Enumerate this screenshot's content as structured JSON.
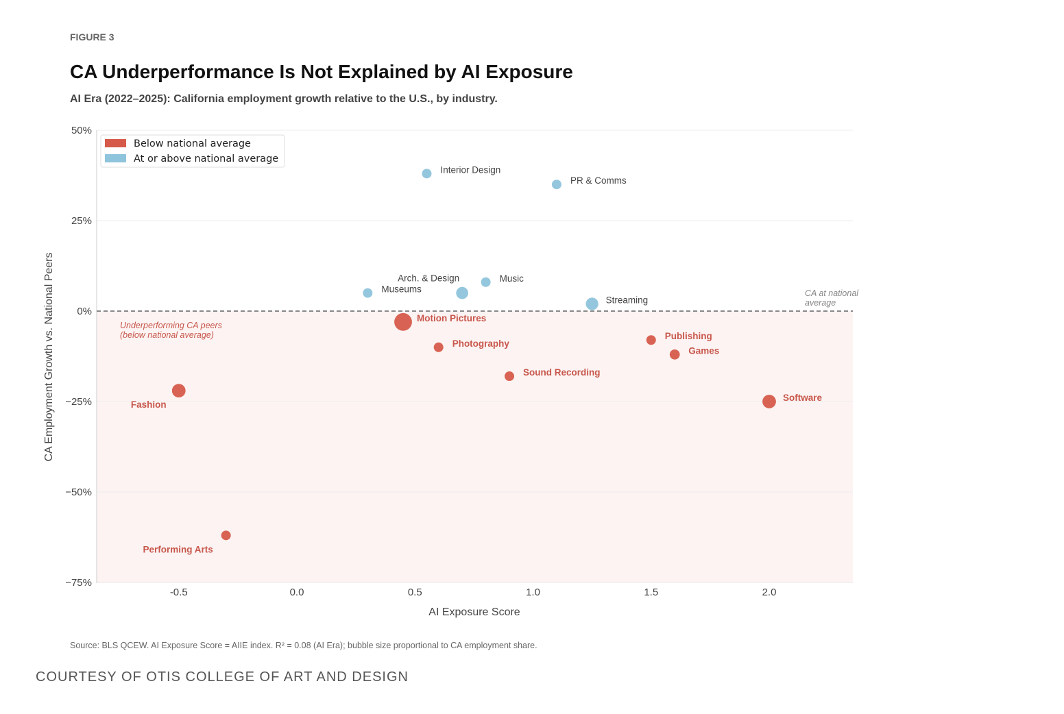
{
  "figure_label": "FIGURE 3",
  "footer": {
    "source": "Source: BLS QCEW. AI Exposure Score = AIIE index. R² = 0.08 (AI Era); bubble size proportional to CA employment share.",
    "courtesy": "COURTESY OF OTIS COLLEGE OF ART AND DESIGN"
  },
  "chart_data": {
    "type": "scatter",
    "title": "CA Underperformance Is Not Explained by AI Exposure",
    "subtitle": "AI Era (2022–2025): California employment growth relative to the U.S., by industry.",
    "xlabel": "AI Exposure Score",
    "ylabel": "CA Employment Growth vs. National Peers",
    "xlim": [
      -0.85,
      2.35
    ],
    "ylim": [
      -75,
      50
    ],
    "x_ticks": [
      -0.5,
      0.0,
      0.5,
      1.0,
      1.5,
      2.0
    ],
    "x_tick_labels": [
      "-0.5",
      "0.0",
      "0.5",
      "1.0",
      "1.5",
      "2.0"
    ],
    "y_ticks": [
      50,
      25,
      0,
      -25,
      -50,
      -75
    ],
    "y_tick_labels": [
      "50%",
      "25%",
      "0%",
      "−25%",
      "−50%",
      "−75%"
    ],
    "grid": "horizontal",
    "legend_position": "top-left",
    "colors": {
      "below": "#d65a4a",
      "above": "#8ec4dc",
      "below_text": "#c8574c",
      "shade": "#fcf3f2",
      "reference_line": "#888888"
    },
    "legend": [
      {
        "key": "below",
        "label": "Below national average"
      },
      {
        "key": "above",
        "label": "At or above national average"
      }
    ],
    "reference_line": {
      "y": 0,
      "label_line1": "CA at national",
      "label_line2": "average"
    },
    "shaded_region_note": {
      "line1": "Underperforming CA peers",
      "line2": "(below national average)"
    },
    "points": [
      {
        "label": "Interior Design",
        "x": 0.55,
        "y": 38,
        "size": 1.0,
        "group": "above"
      },
      {
        "label": "PR & Comms",
        "x": 1.1,
        "y": 35,
        "size": 1.0,
        "group": "above"
      },
      {
        "label": "Arch. & Design",
        "x": 0.7,
        "y": 5,
        "size": 1.6,
        "group": "above"
      },
      {
        "label": "Museums",
        "x": 0.3,
        "y": 5,
        "size": 1.0,
        "group": "above"
      },
      {
        "label": "Music",
        "x": 0.8,
        "y": 8,
        "size": 1.0,
        "group": "above"
      },
      {
        "label": "Streaming",
        "x": 1.25,
        "y": 2,
        "size": 1.7,
        "group": "above"
      },
      {
        "label": "Motion Pictures",
        "x": 0.45,
        "y": -3,
        "size": 3.4,
        "group": "below"
      },
      {
        "label": "Photography",
        "x": 0.6,
        "y": -10,
        "size": 1.0,
        "group": "below"
      },
      {
        "label": "Sound Recording",
        "x": 0.9,
        "y": -18,
        "size": 1.0,
        "group": "below"
      },
      {
        "label": "Publishing",
        "x": 1.5,
        "y": -8,
        "size": 1.0,
        "group": "below"
      },
      {
        "label": "Games",
        "x": 1.6,
        "y": -12,
        "size": 1.1,
        "group": "below"
      },
      {
        "label": "Software",
        "x": 2.0,
        "y": -25,
        "size": 2.0,
        "group": "below"
      },
      {
        "label": "Fashion",
        "x": -0.5,
        "y": -22,
        "size": 2.0,
        "group": "below"
      },
      {
        "label": "Performing Arts",
        "x": -0.3,
        "y": -62,
        "size": 1.0,
        "group": "below"
      }
    ]
  }
}
